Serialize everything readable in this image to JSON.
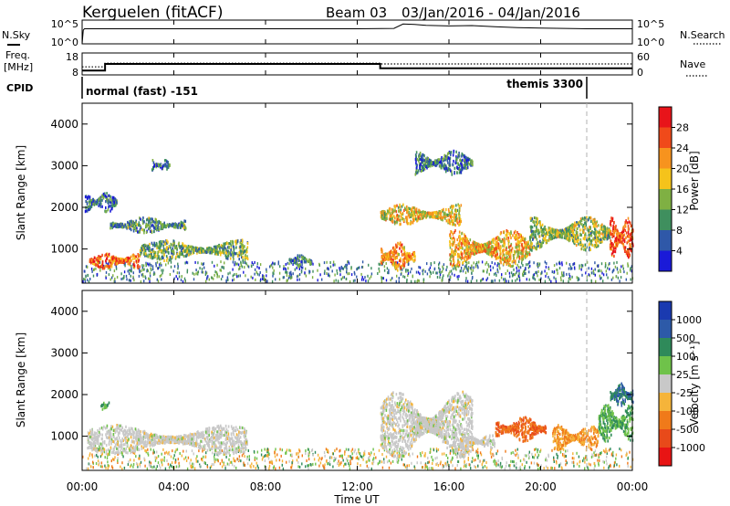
{
  "header": {
    "station": "Kerguelen (fitACF)",
    "beam": "Beam 03",
    "date_range": "03/Jan/2016 - 04/Jan/2016"
  },
  "top_panels": {
    "nsky": {
      "label": "N.Sky",
      "ticks_left": [
        "10^5",
        "10^0"
      ],
      "ticks_right": [
        "10^5",
        "10^0"
      ],
      "right_label": "N.Search"
    },
    "freq": {
      "label_line1": "Freq.",
      "label_line2": "[MHz]",
      "ticks_left": [
        "18",
        "8"
      ],
      "ticks_right": [
        "60",
        "0"
      ],
      "right_label": "Nave"
    },
    "cpid": {
      "label": "CPID",
      "segments": [
        "normal (fast) -151",
        "themis 3300"
      ]
    }
  },
  "axes": {
    "x_label": "Time UT",
    "x_ticks": [
      "00:00",
      "04:00",
      "08:00",
      "12:00",
      "16:00",
      "20:00",
      "00:00"
    ],
    "y_label": "Slant Range [km]",
    "y_ticks": [
      "4000",
      "3000",
      "2000",
      "1000"
    ]
  },
  "colorbars": {
    "power": {
      "label": "Power [dB]",
      "ticks": [
        "28",
        "24",
        "20",
        "16",
        "12",
        "8",
        "4"
      ],
      "colors": [
        "#e8141a",
        "#f04a1a",
        "#f7931e",
        "#f5c31b",
        "#7fb043",
        "#3f8f5e",
        "#2f58a8",
        "#1a1ad8"
      ]
    },
    "velocity": {
      "label": "Velocity [m s⁻¹]",
      "ticks": [
        "1000",
        "500",
        "100",
        "25",
        "-25",
        "-100",
        "-500",
        "-1000"
      ],
      "colors": [
        "#1a3ab0",
        "#2d5aa8",
        "#2f8a5a",
        "#6fc24a",
        "#c8c8c8",
        "#f5b43a",
        "#f07a1a",
        "#e84a1a",
        "#e81414"
      ]
    }
  },
  "chart_data": [
    {
      "type": "line",
      "title": "N.Sky / N.Search",
      "x_unit": "hours UT",
      "x": [
        0,
        0.05,
        0.1,
        1,
        2,
        4,
        6,
        8,
        10,
        12,
        13.6,
        14,
        14.5,
        15,
        16,
        17,
        18,
        19,
        20,
        22,
        24
      ],
      "series": [
        {
          "name": "N.Sky",
          "values": [
            1,
            800,
            1500,
            1500,
            1500,
            1500,
            1500,
            1500,
            1500,
            1500,
            1800,
            15000,
            12000,
            8000,
            6000,
            7000,
            4000,
            2500,
            2000,
            1500,
            1500
          ]
        }
      ],
      "ylim": [
        1,
        100000
      ],
      "yscale": "log"
    },
    {
      "type": "line",
      "title": "Freq. / Nave",
      "x_unit": "hours UT",
      "series": [
        {
          "name": "Freq.",
          "x": [
            0,
            1,
            1,
            13,
            13,
            24
          ],
          "values": [
            10,
            10,
            13,
            13,
            11,
            11
          ]
        },
        {
          "name": "Nave",
          "x": [
            0,
            1,
            1,
            13,
            13,
            24
          ],
          "values": [
            22,
            22,
            32,
            32,
            30,
            30
          ]
        }
      ],
      "ylim_left": [
        8,
        18
      ],
      "ylim_right": [
        0,
        60
      ]
    },
    {
      "type": "heatmap",
      "title": "Power [dB]",
      "xlim": [
        0,
        24
      ],
      "ylim": [
        180,
        4500
      ],
      "value_range": [
        0,
        32
      ],
      "regions": [
        {
          "x": [
            0.3,
            2.5
          ],
          "y": [
            550,
            950
          ],
          "value": 24
        },
        {
          "x": [
            2.5,
            7.2
          ],
          "y": [
            750,
            1250
          ],
          "value": 12
        },
        {
          "x": [
            1.2,
            4.5
          ],
          "y": [
            1400,
            1800
          ],
          "value": 10
        },
        {
          "x": [
            0.1,
            1.5
          ],
          "y": [
            1900,
            2400
          ],
          "value": 8
        },
        {
          "x": [
            3.0,
            3.8
          ],
          "y": [
            2900,
            3200
          ],
          "value": 8
        },
        {
          "x": [
            9.0,
            10.0
          ],
          "y": [
            600,
            900
          ],
          "value": 10
        },
        {
          "x": [
            13.0,
            14.5
          ],
          "y": [
            500,
            1200
          ],
          "value": 22
        },
        {
          "x": [
            13.0,
            16.5
          ],
          "y": [
            1600,
            2100
          ],
          "value": 18
        },
        {
          "x": [
            14.5,
            17.0
          ],
          "y": [
            2800,
            3400
          ],
          "value": 8
        },
        {
          "x": [
            16.0,
            19.5
          ],
          "y": [
            600,
            1500
          ],
          "value": 20
        },
        {
          "x": [
            19.5,
            23.0
          ],
          "y": [
            1000,
            1800
          ],
          "value": 14
        },
        {
          "x": [
            23.0,
            24.0
          ],
          "y": [
            800,
            1800
          ],
          "value": 26
        }
      ]
    },
    {
      "type": "heatmap",
      "title": "Velocity [m s⁻¹]",
      "xlim": [
        0,
        24
      ],
      "ylim": [
        180,
        4500
      ],
      "value_range": [
        -1000,
        1000
      ],
      "regions": [
        {
          "x": [
            0.2,
            7.2
          ],
          "y": [
            600,
            1300
          ],
          "value": 0
        },
        {
          "x": [
            0.8,
            1.2
          ],
          "y": [
            1650,
            1850
          ],
          "value": 100
        },
        {
          "x": [
            13.0,
            17.0
          ],
          "y": [
            500,
            2100
          ],
          "value": 0
        },
        {
          "x": [
            16.5,
            18.0
          ],
          "y": [
            700,
            1100
          ],
          "value": 0
        },
        {
          "x": [
            18.0,
            20.2
          ],
          "y": [
            900,
            1500
          ],
          "value": -500
        },
        {
          "x": [
            20.5,
            22.5
          ],
          "y": [
            700,
            1300
          ],
          "value": -100
        },
        {
          "x": [
            22.5,
            24.0
          ],
          "y": [
            900,
            1800
          ],
          "value": 100
        },
        {
          "x": [
            23.0,
            24.0
          ],
          "y": [
            1700,
            2300
          ],
          "value": 500
        }
      ]
    }
  ]
}
